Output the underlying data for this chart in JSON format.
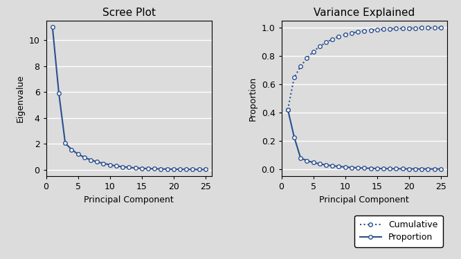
{
  "n_components": 25,
  "eigenvalues": [
    11.0,
    5.9,
    2.05,
    1.55,
    1.2,
    0.95,
    0.75,
    0.6,
    0.48,
    0.38,
    0.28,
    0.22,
    0.17,
    0.13,
    0.1,
    0.08,
    0.065,
    0.05,
    0.04,
    0.03,
    0.025,
    0.02,
    0.015,
    0.01,
    0.007
  ],
  "line_color": "#2b4f8e",
  "marker": "o",
  "markersize": 4,
  "markerfacecolor": "white",
  "linewidth": 1.5,
  "title_scree": "Scree Plot",
  "title_var": "Variance Explained",
  "xlabel": "Principal Component",
  "ylabel_scree": "Eigenvalue",
  "ylabel_var": "Proportion",
  "xlim": [
    0,
    26
  ],
  "xticks": [
    0,
    5,
    10,
    15,
    20,
    25
  ],
  "yticks_scree": [
    0,
    2,
    4,
    6,
    8,
    10
  ],
  "yticks_var": [
    0.0,
    0.2,
    0.4,
    0.6,
    0.8,
    1.0
  ],
  "ylim_scree": [
    -0.5,
    11.5
  ],
  "ylim_var": [
    -0.05,
    1.05
  ],
  "bg_color": "#dcdcdc",
  "fig_color": "#dcdcdc",
  "legend_labels": [
    "Cumulative",
    "Proportion"
  ],
  "grid_color": "white",
  "grid_linewidth": 1.0,
  "font_size_title": 11,
  "font_size_label": 9,
  "font_size_tick": 9,
  "font_size_legend": 9
}
